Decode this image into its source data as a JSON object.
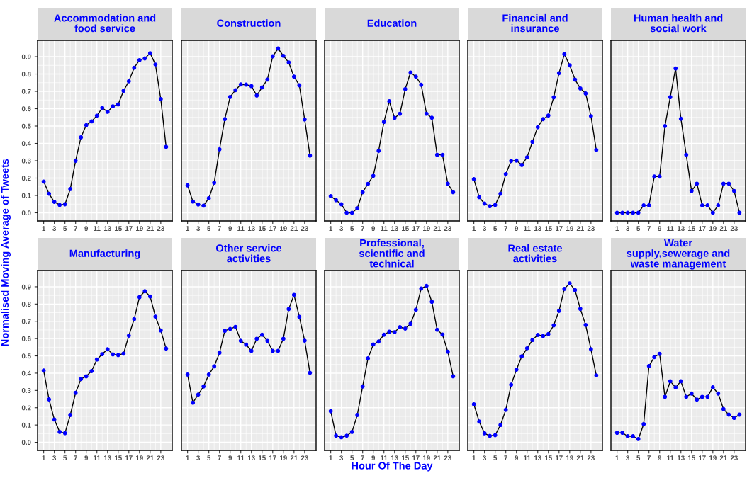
{
  "chart_data": [
    {
      "type": "line",
      "title": "Accommodation and\nfood service",
      "x": [
        1,
        2,
        3,
        4,
        5,
        6,
        7,
        8,
        9,
        10,
        11,
        12,
        13,
        14,
        15,
        16,
        17,
        18,
        19,
        20,
        21,
        22,
        23,
        24
      ],
      "series": [
        {
          "color": "#0000ff",
          "values": [
            0.18,
            0.11,
            0.063,
            0.045,
            0.049,
            0.137,
            0.3,
            0.435,
            0.505,
            0.527,
            0.56,
            0.605,
            0.582,
            0.614,
            0.625,
            0.703,
            0.758,
            0.836,
            0.88,
            0.89,
            0.92,
            0.855,
            0.655,
            0.38
          ]
        }
      ],
      "xlim": [
        -0.15,
        25.15
      ],
      "ylim": [
        -0.047,
        0.994
      ],
      "xticks": [
        1,
        3,
        5,
        7,
        9,
        11,
        13,
        15,
        17,
        19,
        21,
        23
      ],
      "yticks": [
        {
          "value": 0,
          "label": "0.0"
        },
        0.1,
        0.2,
        0.3,
        0.4,
        0.5,
        0.6,
        0.7,
        0.8,
        0.9
      ],
      "grid": true,
      "marker": "circle",
      "line_style": "solid"
    },
    {
      "type": "line",
      "title": "Construction",
      "x": [
        1,
        2,
        3,
        4,
        5,
        6,
        7,
        8,
        9,
        10,
        11,
        12,
        13,
        14,
        15,
        16,
        17,
        18,
        19,
        20,
        21,
        22,
        23,
        24
      ],
      "series": [
        {
          "color": "#0000ff",
          "values": [
            0.158,
            0.065,
            0.048,
            0.041,
            0.084,
            0.173,
            0.366,
            0.54,
            0.668,
            0.707,
            0.74,
            0.739,
            0.73,
            0.676,
            0.723,
            0.768,
            0.902,
            0.947,
            0.905,
            0.867,
            0.785,
            0.735,
            0.538,
            0.33
          ]
        }
      ],
      "xlim": [
        -0.15,
        25.15
      ],
      "ylim": [
        -0.047,
        0.994
      ],
      "xticks": [
        1,
        3,
        5,
        7,
        9,
        11,
        13,
        15,
        17,
        19,
        21,
        23
      ],
      "yticks": [
        {
          "value": 0,
          "label": null
        },
        {
          "value": 0.1,
          "label": null
        },
        {
          "value": 0.2,
          "label": null
        },
        {
          "value": 0.3,
          "label": null
        },
        {
          "value": 0.4,
          "label": null
        },
        {
          "value": 0.5,
          "label": null
        },
        {
          "value": 0.6,
          "label": null
        },
        {
          "value": 0.7,
          "label": null
        },
        {
          "value": 0.8,
          "label": null
        },
        {
          "value": 0.9,
          "label": null
        }
      ],
      "tick_labels": "x",
      "grid": true,
      "marker": "circle",
      "line_style": "solid"
    },
    {
      "type": "line",
      "title": "Education",
      "x": [
        1,
        2,
        3,
        4,
        5,
        6,
        7,
        8,
        9,
        10,
        11,
        12,
        13,
        14,
        15,
        16,
        17,
        18,
        19,
        20,
        21,
        22,
        23,
        24
      ],
      "series": [
        {
          "color": "#0000ff",
          "values": [
            0.096,
            0.073,
            0.049,
            0.0,
            0.0,
            0.026,
            0.119,
            0.167,
            0.213,
            0.357,
            0.524,
            0.643,
            0.547,
            0.571,
            0.713,
            0.809,
            0.785,
            0.738,
            0.571,
            0.548,
            0.334,
            0.334,
            0.168,
            0.119
          ]
        }
      ],
      "xlim": [
        -0.15,
        25.15
      ],
      "ylim": [
        -0.047,
        0.994
      ],
      "xticks": [
        1,
        3,
        5,
        7,
        9,
        11,
        13,
        15,
        17,
        19,
        21,
        23
      ],
      "yticks": [
        {
          "value": 0,
          "label": null
        },
        {
          "value": 0.1,
          "label": null
        },
        {
          "value": 0.2,
          "label": null
        },
        {
          "value": 0.3,
          "label": null
        },
        {
          "value": 0.4,
          "label": null
        },
        {
          "value": 0.5,
          "label": null
        },
        {
          "value": 0.6,
          "label": null
        },
        {
          "value": 0.7,
          "label": null
        },
        {
          "value": 0.8,
          "label": null
        },
        {
          "value": 0.9,
          "label": null
        }
      ],
      "tick_labels": "x",
      "grid": true,
      "marker": "circle",
      "line_style": "solid"
    },
    {
      "type": "line",
      "title": "Financial and\ninsurance",
      "x": [
        1,
        2,
        3,
        4,
        5,
        6,
        7,
        8,
        9,
        10,
        11,
        12,
        13,
        14,
        15,
        16,
        17,
        18,
        19,
        20,
        21,
        22,
        23,
        24
      ],
      "series": [
        {
          "color": "#0000ff",
          "values": [
            0.194,
            0.09,
            0.053,
            0.038,
            0.045,
            0.11,
            0.223,
            0.299,
            0.301,
            0.276,
            0.32,
            0.409,
            0.494,
            0.54,
            0.561,
            0.666,
            0.805,
            0.915,
            0.85,
            0.768,
            0.717,
            0.688,
            0.557,
            0.362
          ]
        }
      ],
      "xlim": [
        -0.15,
        25.15
      ],
      "ylim": [
        -0.047,
        0.994
      ],
      "xticks": [
        1,
        3,
        5,
        7,
        9,
        11,
        13,
        15,
        17,
        19,
        21,
        23
      ],
      "yticks": [
        {
          "value": 0,
          "label": null
        },
        {
          "value": 0.1,
          "label": null
        },
        {
          "value": 0.2,
          "label": null
        },
        {
          "value": 0.3,
          "label": null
        },
        {
          "value": 0.4,
          "label": null
        },
        {
          "value": 0.5,
          "label": null
        },
        {
          "value": 0.6,
          "label": null
        },
        {
          "value": 0.7,
          "label": null
        },
        {
          "value": 0.8,
          "label": null
        },
        {
          "value": 0.9,
          "label": null
        }
      ],
      "tick_labels": "x",
      "grid": true,
      "marker": "circle",
      "line_style": "solid"
    },
    {
      "type": "line",
      "title": "Human health and\nsocial work",
      "x": [
        1,
        2,
        3,
        4,
        5,
        6,
        7,
        8,
        9,
        10,
        11,
        12,
        13,
        14,
        15,
        16,
        17,
        18,
        19,
        20,
        21,
        22,
        23,
        24
      ],
      "series": [
        {
          "color": "#0000ff",
          "values": [
            0,
            0,
            0,
            0,
            0,
            0.043,
            0.043,
            0.209,
            0.209,
            0.5,
            0.667,
            0.832,
            0.542,
            0.334,
            0.126,
            0.168,
            0.043,
            0.043,
            0,
            0.043,
            0.168,
            0.168,
            0.126,
            0
          ]
        }
      ],
      "xlim": [
        -0.15,
        25.15
      ],
      "ylim": [
        -0.047,
        0.994
      ],
      "xticks": [
        1,
        3,
        5,
        7,
        9,
        11,
        13,
        15,
        17,
        19,
        21,
        23
      ],
      "yticks": [
        {
          "value": 0,
          "label": null
        },
        {
          "value": 0.1,
          "label": null
        },
        {
          "value": 0.2,
          "label": null
        },
        {
          "value": 0.3,
          "label": null
        },
        {
          "value": 0.4,
          "label": null
        },
        {
          "value": 0.5,
          "label": null
        },
        {
          "value": 0.6,
          "label": null
        },
        {
          "value": 0.7,
          "label": null
        },
        {
          "value": 0.8,
          "label": null
        },
        {
          "value": 0.9,
          "label": null
        }
      ],
      "tick_labels": "x",
      "grid": true,
      "marker": "circle",
      "line_style": "solid"
    },
    {
      "type": "line",
      "title": "Manufacturing",
      "ylabel": "Normalised Moving Average of Tweets",
      "x": [
        1,
        2,
        3,
        4,
        5,
        6,
        7,
        8,
        9,
        10,
        11,
        12,
        13,
        14,
        15,
        16,
        17,
        18,
        19,
        20,
        21,
        22,
        23,
        24
      ],
      "series": [
        {
          "color": "#0000ff",
          "values": [
            0.415,
            0.248,
            0.132,
            0.06,
            0.053,
            0.158,
            0.286,
            0.366,
            0.382,
            0.412,
            0.479,
            0.51,
            0.538,
            0.509,
            0.505,
            0.513,
            0.617,
            0.713,
            0.84,
            0.874,
            0.844,
            0.727,
            0.647,
            0.542
          ]
        }
      ],
      "xlim": [
        -0.15,
        25.15
      ],
      "ylim": [
        -0.047,
        0.994
      ],
      "xticks": [
        1,
        3,
        5,
        7,
        9,
        11,
        13,
        15,
        17,
        19,
        21,
        23
      ],
      "yticks": [
        {
          "value": 0,
          "label": "0.0"
        },
        0.1,
        0.2,
        0.3,
        0.4,
        0.5,
        0.6,
        0.7,
        0.8,
        0.9
      ],
      "grid": true,
      "marker": "circle",
      "line_style": "solid"
    },
    {
      "type": "line",
      "title": "Other service\nactivities",
      "x": [
        1,
        2,
        3,
        4,
        5,
        6,
        7,
        8,
        9,
        10,
        11,
        12,
        13,
        14,
        15,
        16,
        17,
        18,
        19,
        20,
        21,
        22,
        23,
        24
      ],
      "series": [
        {
          "color": "#0000ff",
          "values": [
            0.392,
            0.229,
            0.276,
            0.323,
            0.392,
            0.439,
            0.518,
            0.645,
            0.656,
            0.668,
            0.587,
            0.565,
            0.529,
            0.599,
            0.622,
            0.587,
            0.529,
            0.529,
            0.599,
            0.771,
            0.853,
            0.726,
            0.588,
            0.402
          ]
        }
      ],
      "xlim": [
        -0.15,
        25.15
      ],
      "ylim": [
        -0.047,
        0.994
      ],
      "xticks": [
        1,
        3,
        5,
        7,
        9,
        11,
        13,
        15,
        17,
        19,
        21,
        23
      ],
      "yticks": [
        {
          "value": 0,
          "label": null
        },
        {
          "value": 0.1,
          "label": null
        },
        {
          "value": 0.2,
          "label": null
        },
        {
          "value": 0.3,
          "label": null
        },
        {
          "value": 0.4,
          "label": null
        },
        {
          "value": 0.5,
          "label": null
        },
        {
          "value": 0.6,
          "label": null
        },
        {
          "value": 0.7,
          "label": null
        },
        {
          "value": 0.8,
          "label": null
        },
        {
          "value": 0.9,
          "label": null
        }
      ],
      "tick_labels": "x",
      "grid": true,
      "marker": "circle",
      "line_style": "solid"
    },
    {
      "type": "line",
      "title": "Professional,\nscientific and\ntechnical",
      "xlabel": "Hour Of The Day",
      "x": [
        1,
        2,
        3,
        4,
        5,
        6,
        7,
        8,
        9,
        10,
        11,
        12,
        13,
        14,
        15,
        16,
        17,
        18,
        19,
        20,
        21,
        22,
        23,
        24
      ],
      "series": [
        {
          "color": "#0000ff",
          "values": [
            0.18,
            0.038,
            0.029,
            0.038,
            0.06,
            0.158,
            0.323,
            0.486,
            0.566,
            0.583,
            0.622,
            0.64,
            0.637,
            0.666,
            0.658,
            0.686,
            0.767,
            0.89,
            0.905,
            0.813,
            0.651,
            0.623,
            0.524,
            0.382
          ]
        }
      ],
      "xlim": [
        -0.15,
        25.15
      ],
      "ylim": [
        -0.047,
        0.994
      ],
      "xticks": [
        1,
        3,
        5,
        7,
        9,
        11,
        13,
        15,
        17,
        19,
        21,
        23
      ],
      "yticks": [
        {
          "value": 0,
          "label": null
        },
        {
          "value": 0.1,
          "label": null
        },
        {
          "value": 0.2,
          "label": null
        },
        {
          "value": 0.3,
          "label": null
        },
        {
          "value": 0.4,
          "label": null
        },
        {
          "value": 0.5,
          "label": null
        },
        {
          "value": 0.6,
          "label": null
        },
        {
          "value": 0.7,
          "label": null
        },
        {
          "value": 0.8,
          "label": null
        },
        {
          "value": 0.9,
          "label": null
        }
      ],
      "tick_labels": "x",
      "grid": true,
      "marker": "circle",
      "line_style": "solid"
    },
    {
      "type": "line",
      "title": "Real estate\nactivities",
      "x": [
        1,
        2,
        3,
        4,
        5,
        6,
        7,
        8,
        9,
        10,
        11,
        12,
        13,
        14,
        15,
        16,
        17,
        18,
        19,
        20,
        21,
        22,
        23,
        24
      ],
      "series": [
        {
          "color": "#0000ff",
          "values": [
            0.22,
            0.12,
            0.052,
            0.037,
            0.041,
            0.1,
            0.188,
            0.333,
            0.42,
            0.497,
            0.544,
            0.592,
            0.621,
            0.615,
            0.626,
            0.677,
            0.761,
            0.888,
            0.92,
            0.881,
            0.772,
            0.679,
            0.538,
            0.387
          ]
        }
      ],
      "xlim": [
        -0.15,
        25.15
      ],
      "ylim": [
        -0.047,
        0.994
      ],
      "xticks": [
        1,
        3,
        5,
        7,
        9,
        11,
        13,
        15,
        17,
        19,
        21,
        23
      ],
      "yticks": [
        {
          "value": 0,
          "label": null
        },
        {
          "value": 0.1,
          "label": null
        },
        {
          "value": 0.2,
          "label": null
        },
        {
          "value": 0.3,
          "label": null
        },
        {
          "value": 0.4,
          "label": null
        },
        {
          "value": 0.5,
          "label": null
        },
        {
          "value": 0.6,
          "label": null
        },
        {
          "value": 0.7,
          "label": null
        },
        {
          "value": 0.8,
          "label": null
        },
        {
          "value": 0.9,
          "label": null
        }
      ],
      "tick_labels": "x",
      "grid": true,
      "marker": "circle",
      "line_style": "solid"
    },
    {
      "type": "line",
      "title": "Water\nsupply,sewerage and\nwaste management",
      "x": [
        1,
        2,
        3,
        4,
        5,
        6,
        7,
        8,
        9,
        10,
        11,
        12,
        13,
        14,
        15,
        16,
        17,
        18,
        19,
        20,
        21,
        22,
        23,
        24
      ],
      "series": [
        {
          "color": "#0000ff",
          "values": [
            0.055,
            0.055,
            0.035,
            0.035,
            0.019,
            0.105,
            0.441,
            0.493,
            0.512,
            0.263,
            0.353,
            0.317,
            0.353,
            0.263,
            0.282,
            0.247,
            0.263,
            0.263,
            0.318,
            0.282,
            0.192,
            0.16,
            0.141,
            0.16
          ]
        }
      ],
      "xlim": [
        -0.15,
        25.15
      ],
      "ylim": [
        -0.047,
        0.994
      ],
      "xticks": [
        1,
        3,
        5,
        7,
        9,
        11,
        13,
        15,
        17,
        19,
        21,
        23
      ],
      "yticks": [
        {
          "value": 0,
          "label": null
        },
        {
          "value": 0.1,
          "label": null
        },
        {
          "value": 0.2,
          "label": null
        },
        {
          "value": 0.3,
          "label": null
        },
        {
          "value": 0.4,
          "label": null
        },
        {
          "value": 0.5,
          "label": null
        },
        {
          "value": 0.6,
          "label": null
        },
        {
          "value": 0.7,
          "label": null
        },
        {
          "value": 0.8,
          "label": null
        },
        {
          "value": 0.9,
          "label": null
        }
      ],
      "tick_labels": "x",
      "grid": true,
      "marker": "circle",
      "line_style": "solid"
    }
  ]
}
